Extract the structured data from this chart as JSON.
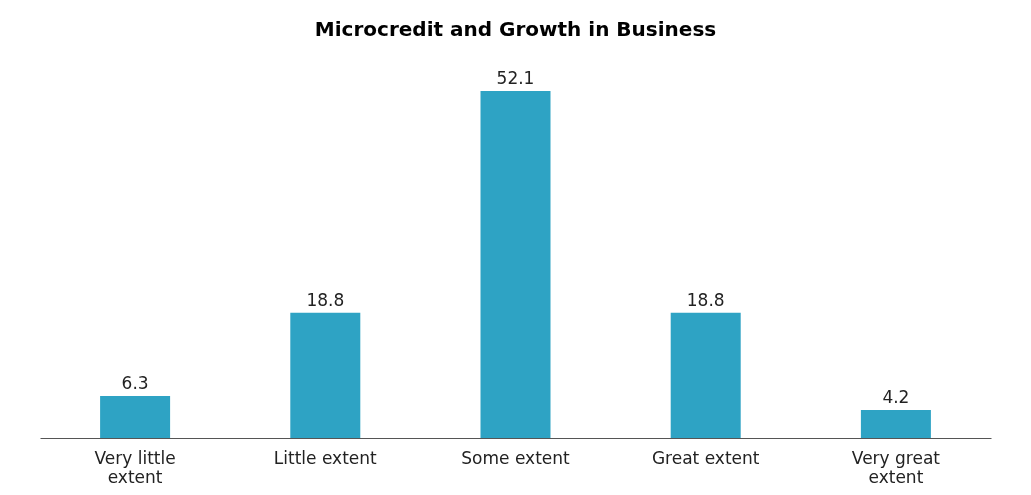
{
  "chart_data": {
    "type": "bar",
    "title": "Microcredit and Growth in Business",
    "categories": [
      "Very little extent",
      "Little extent",
      "Some extent",
      "Great extent",
      "Very great extent"
    ],
    "values": [
      6.3,
      18.8,
      52.1,
      18.8,
      4.2
    ],
    "color": "#2ea3c4",
    "data_labels": true,
    "grid": false
  }
}
